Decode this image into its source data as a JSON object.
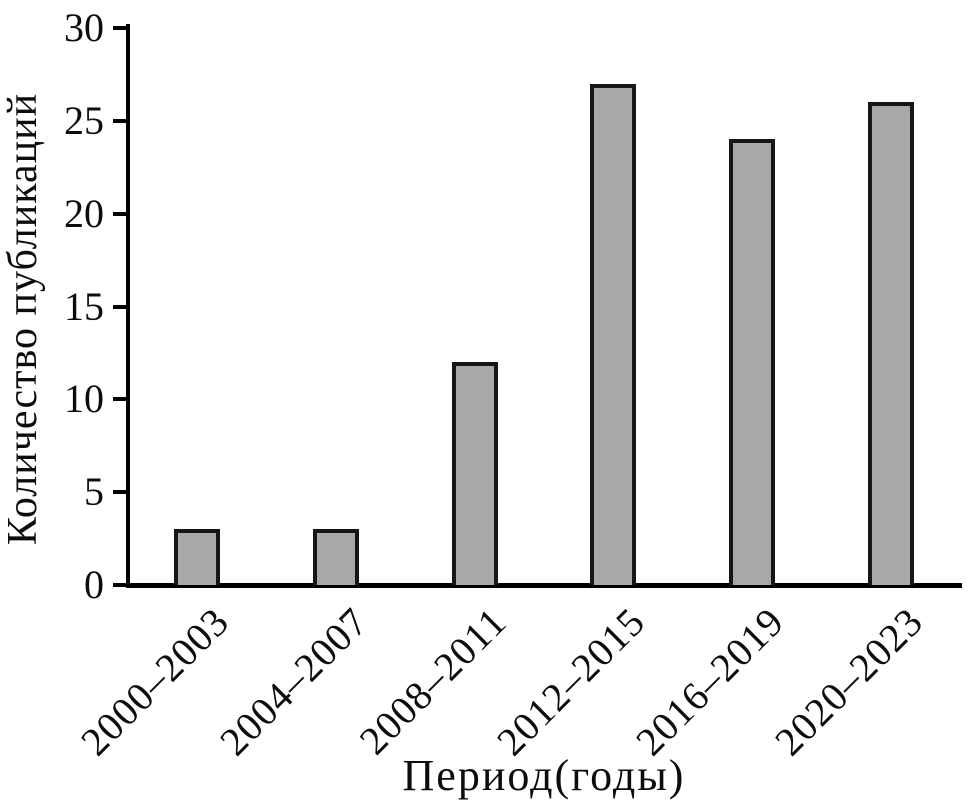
{
  "chart_data": {
    "type": "bar",
    "categories": [
      "2000–2003",
      "2004–2007",
      "2008–2011",
      "2012–2015",
      "2016–2019",
      "2020–2023"
    ],
    "values": [
      3,
      3,
      12,
      27,
      24,
      26
    ],
    "title": "",
    "xlabel": "Период(годы)",
    "ylabel": "Количество публикаций",
    "ylim": [
      0,
      30
    ],
    "yticks": [
      0,
      5,
      10,
      15,
      20,
      25,
      30
    ],
    "grid": false,
    "legend_position": "none",
    "bar_fill_color": "#a8a8aa",
    "bar_border_color": "#161616",
    "axis_color": "#000000",
    "background_color": "#ffffff"
  }
}
